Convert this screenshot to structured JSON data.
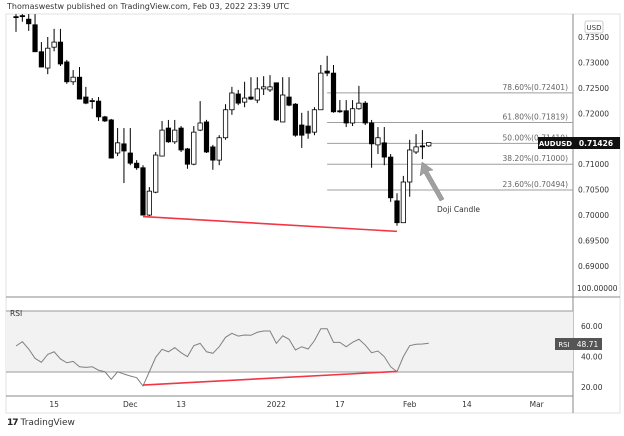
{
  "header": {
    "text": "Thomaswestw published on TradingView.com, Feb 03, 2022 23:39 UTC"
  },
  "footer": {
    "brand": "TradingView",
    "logo_icon": "tradingview-logo-icon"
  },
  "colors": {
    "bull": "#ffffff",
    "bear": "#000000",
    "trendline": "#f23645",
    "fib_line": "#9e9e9e",
    "rsi_line": "#808080",
    "rsi_band_fill": "#f2f2f2",
    "arrow": "#a0a0a0"
  },
  "chart_data": [
    {
      "type": "candlestick",
      "symbol": "AUDUSD",
      "currency": "USD",
      "last_price": "0.71426",
      "ylim": [
        0.688,
        0.7395
      ],
      "price_ticks": [
        "0.73500",
        "0.73000",
        "0.72500",
        "0.72000",
        "0.71000",
        "0.70500",
        "0.70000",
        "0.69500",
        "0.69000"
      ],
      "candles": [
        {
          "d": "2021-11-05",
          "o": 0.739,
          "h": 0.7395,
          "l": 0.736,
          "c": 0.7389
        },
        {
          "d": "2021-11-08",
          "o": 0.7392,
          "h": 0.7395,
          "l": 0.738,
          "c": 0.739
        },
        {
          "d": "2021-11-09",
          "o": 0.7385,
          "h": 0.7395,
          "l": 0.7362,
          "c": 0.7376
        },
        {
          "d": "2021-11-10",
          "o": 0.7374,
          "h": 0.7395,
          "l": 0.7321,
          "c": 0.7321
        },
        {
          "d": "2021-11-11",
          "o": 0.7321,
          "h": 0.734,
          "l": 0.7291,
          "c": 0.7291
        },
        {
          "d": "2021-11-12",
          "o": 0.7289,
          "h": 0.735,
          "l": 0.7277,
          "c": 0.7328
        },
        {
          "d": "2021-11-15",
          "o": 0.733,
          "h": 0.7366,
          "l": 0.7322,
          "c": 0.734
        },
        {
          "d": "2021-11-16",
          "o": 0.734,
          "h": 0.7366,
          "l": 0.7293,
          "c": 0.7297
        },
        {
          "d": "2021-11-17",
          "o": 0.7301,
          "h": 0.7305,
          "l": 0.7258,
          "c": 0.7262
        },
        {
          "d": "2021-11-18",
          "o": 0.7262,
          "h": 0.7285,
          "l": 0.7256,
          "c": 0.7271
        },
        {
          "d": "2021-11-19",
          "o": 0.7271,
          "h": 0.7291,
          "l": 0.7228,
          "c": 0.7228
        },
        {
          "d": "2021-11-22",
          "o": 0.7232,
          "h": 0.7252,
          "l": 0.7218,
          "c": 0.722
        },
        {
          "d": "2021-11-23",
          "o": 0.7225,
          "h": 0.723,
          "l": 0.7209,
          "c": 0.7224
        },
        {
          "d": "2021-11-24",
          "o": 0.7224,
          "h": 0.7232,
          "l": 0.7185,
          "c": 0.7193
        },
        {
          "d": "2021-11-25",
          "o": 0.7193,
          "h": 0.7195,
          "l": 0.7183,
          "c": 0.7185
        },
        {
          "d": "2021-11-26",
          "o": 0.7187,
          "h": 0.7189,
          "l": 0.7112,
          "c": 0.7112
        },
        {
          "d": "2021-11-29",
          "o": 0.7122,
          "h": 0.7171,
          "l": 0.7116,
          "c": 0.7142
        },
        {
          "d": "2021-11-30",
          "o": 0.714,
          "h": 0.7171,
          "l": 0.7063,
          "c": 0.7126
        },
        {
          "d": "2021-12-01",
          "o": 0.7122,
          "h": 0.7171,
          "l": 0.7098,
          "c": 0.7102
        },
        {
          "d": "2021-12-02",
          "o": 0.7102,
          "h": 0.7108,
          "l": 0.7089,
          "c": 0.7093
        },
        {
          "d": "2021-12-03",
          "o": 0.7093,
          "h": 0.7098,
          "l": 0.7,
          "c": 0.7
        },
        {
          "d": "2021-12-06",
          "o": 0.7,
          "h": 0.7055,
          "l": 0.6998,
          "c": 0.7047
        },
        {
          "d": "2021-12-07",
          "o": 0.7045,
          "h": 0.7124,
          "l": 0.7043,
          "c": 0.7118
        },
        {
          "d": "2021-12-08",
          "o": 0.7116,
          "h": 0.7185,
          "l": 0.7116,
          "c": 0.7167
        },
        {
          "d": "2021-12-09",
          "o": 0.7171,
          "h": 0.7187,
          "l": 0.7142,
          "c": 0.7144
        },
        {
          "d": "2021-12-10",
          "o": 0.7144,
          "h": 0.7187,
          "l": 0.714,
          "c": 0.7167
        },
        {
          "d": "2021-12-13",
          "o": 0.7171,
          "h": 0.7175,
          "l": 0.7124,
          "c": 0.7128
        },
        {
          "d": "2021-12-14",
          "o": 0.713,
          "h": 0.7132,
          "l": 0.7091,
          "c": 0.71
        },
        {
          "d": "2021-12-15",
          "o": 0.71,
          "h": 0.7175,
          "l": 0.7098,
          "c": 0.7163
        },
        {
          "d": "2021-12-16",
          "o": 0.7167,
          "h": 0.7224,
          "l": 0.7165,
          "c": 0.7181
        },
        {
          "d": "2021-12-17",
          "o": 0.7183,
          "h": 0.7187,
          "l": 0.7122,
          "c": 0.7124
        },
        {
          "d": "2021-12-20",
          "o": 0.7134,
          "h": 0.7138,
          "l": 0.7089,
          "c": 0.7108
        },
        {
          "d": "2021-12-21",
          "o": 0.7108,
          "h": 0.7157,
          "l": 0.7098,
          "c": 0.7152
        },
        {
          "d": "2021-12-22",
          "o": 0.7152,
          "h": 0.7218,
          "l": 0.7148,
          "c": 0.7207
        },
        {
          "d": "2021-12-23",
          "o": 0.7207,
          "h": 0.7252,
          "l": 0.7197,
          "c": 0.724
        },
        {
          "d": "2021-12-24",
          "o": 0.7238,
          "h": 0.7246,
          "l": 0.7216,
          "c": 0.722
        },
        {
          "d": "2021-12-27",
          "o": 0.7222,
          "h": 0.7262,
          "l": 0.7212,
          "c": 0.723
        },
        {
          "d": "2021-12-28",
          "o": 0.7232,
          "h": 0.7271,
          "l": 0.7226,
          "c": 0.7228
        },
        {
          "d": "2021-12-29",
          "o": 0.7226,
          "h": 0.7271,
          "l": 0.722,
          "c": 0.7248
        },
        {
          "d": "2021-12-30",
          "o": 0.7248,
          "h": 0.7273,
          "l": 0.7236,
          "c": 0.7252
        },
        {
          "d": "2021-12-31",
          "o": 0.7246,
          "h": 0.7275,
          "l": 0.7242,
          "c": 0.7252
        },
        {
          "d": "2022-01-03",
          "o": 0.726,
          "h": 0.726,
          "l": 0.7185,
          "c": 0.7187
        },
        {
          "d": "2022-01-04",
          "o": 0.7183,
          "h": 0.7271,
          "l": 0.7183,
          "c": 0.7236
        },
        {
          "d": "2022-01-05",
          "o": 0.7232,
          "h": 0.7271,
          "l": 0.7214,
          "c": 0.7216
        },
        {
          "d": "2022-01-06",
          "o": 0.7218,
          "h": 0.722,
          "l": 0.7154,
          "c": 0.7157
        },
        {
          "d": "2022-01-07",
          "o": 0.7177,
          "h": 0.7201,
          "l": 0.7132,
          "c": 0.7157
        },
        {
          "d": "2022-01-10",
          "o": 0.7175,
          "h": 0.7205,
          "l": 0.715,
          "c": 0.7161
        },
        {
          "d": "2022-01-11",
          "o": 0.7163,
          "h": 0.7212,
          "l": 0.7157,
          "c": 0.7207
        },
        {
          "d": "2022-01-12",
          "o": 0.7207,
          "h": 0.7295,
          "l": 0.7207,
          "c": 0.7279
        },
        {
          "d": "2022-01-13",
          "o": 0.7283,
          "h": 0.7313,
          "l": 0.7273,
          "c": 0.7279
        },
        {
          "d": "2022-01-14",
          "o": 0.7279,
          "h": 0.7295,
          "l": 0.7201,
          "c": 0.7203
        },
        {
          "d": "2022-01-17",
          "o": 0.7205,
          "h": 0.7226,
          "l": 0.7201,
          "c": 0.7203
        },
        {
          "d": "2022-01-18",
          "o": 0.7205,
          "h": 0.7226,
          "l": 0.7173,
          "c": 0.7181
        },
        {
          "d": "2022-01-19",
          "o": 0.7181,
          "h": 0.7226,
          "l": 0.7175,
          "c": 0.7209
        },
        {
          "d": "2022-01-20",
          "o": 0.7209,
          "h": 0.7254,
          "l": 0.7207,
          "c": 0.722
        },
        {
          "d": "2022-01-21",
          "o": 0.722,
          "h": 0.7224,
          "l": 0.7177,
          "c": 0.7181
        },
        {
          "d": "2022-01-24",
          "o": 0.7181,
          "h": 0.7187,
          "l": 0.7093,
          "c": 0.714
        },
        {
          "d": "2022-01-25",
          "o": 0.7138,
          "h": 0.7173,
          "l": 0.712,
          "c": 0.7152
        },
        {
          "d": "2022-01-26",
          "o": 0.7142,
          "h": 0.7173,
          "l": 0.7098,
          "c": 0.7114
        },
        {
          "d": "2022-01-27",
          "o": 0.7114,
          "h": 0.712,
          "l": 0.7026,
          "c": 0.7034
        },
        {
          "d": "2022-01-28",
          "o": 0.7028,
          "h": 0.7043,
          "l": 0.6979,
          "c": 0.6985
        },
        {
          "d": "2022-01-31",
          "o": 0.6985,
          "h": 0.7077,
          "l": 0.6985,
          "c": 0.7065
        },
        {
          "d": "2022-02-01",
          "o": 0.7065,
          "h": 0.7148,
          "l": 0.7036,
          "c": 0.7128
        },
        {
          "d": "2022-02-02",
          "o": 0.7124,
          "h": 0.7159,
          "l": 0.712,
          "c": 0.7134
        },
        {
          "d": "2022-02-03",
          "o": 0.7136,
          "h": 0.7167,
          "l": 0.711,
          "c": 0.7135
        },
        {
          "d": "2022-02-04",
          "o": 0.7136,
          "h": 0.7143,
          "l": 0.7134,
          "c": 0.71426
        }
      ],
      "fib_levels": [
        {
          "label": "78.60%(0.72401)",
          "price": 0.72401
        },
        {
          "label": "61.80%(0.71819)",
          "price": 0.71819
        },
        {
          "label": "50.00%(0.71410)",
          "price": 0.7141
        },
        {
          "label": "38.20%(0.71000)",
          "price": 0.71
        },
        {
          "label": "23.60%(0.70494)",
          "price": 0.70494
        }
      ],
      "fib_start_date": "2022-01-13",
      "trendline": {
        "from": {
          "d": "2021-12-03",
          "price": 0.6997
        },
        "to": {
          "d": "2022-01-28",
          "price": 0.6968
        }
      },
      "annotation": {
        "text": "Doji Candle",
        "target_date": "2022-02-03"
      }
    },
    {
      "type": "line",
      "title": "RSI",
      "last_value": "48.71",
      "ylim": [
        15,
        78
      ],
      "bands": [
        30,
        70
      ],
      "axis_ticks": [
        "60.00",
        "40.00",
        "20.00"
      ],
      "top_label": "100.00000",
      "values": [
        46.9,
        49.7,
        44.9,
        38.8,
        36.2,
        41.4,
        43.1,
        38.4,
        35.9,
        36.8,
        33.3,
        32.9,
        33.3,
        31.0,
        30.0,
        25.0,
        30.0,
        28.5,
        27.2,
        26.1,
        20.7,
        30.0,
        39.5,
        44.7,
        43.1,
        45.8,
        42.5,
        39.9,
        47.1,
        48.6,
        43.1,
        42.1,
        46.4,
        52.6,
        55.2,
        53.4,
        54.1,
        53.9,
        55.9,
        56.7,
        56.7,
        48.6,
        53.6,
        51.3,
        44.3,
        46.4,
        44.9,
        50.4,
        58.2,
        58.2,
        49.3,
        49.3,
        46.4,
        49.3,
        51.3,
        47.5,
        42.5,
        43.6,
        39.9,
        33.3,
        30.0,
        39.9,
        47.1,
        48.0,
        48.2,
        48.71
      ],
      "trendline": {
        "from": {
          "d": "2021-12-03",
          "value": 21.3
        },
        "to": {
          "d": "2022-01-28",
          "value": 30.2
        }
      }
    }
  ],
  "time_axis": [
    {
      "label": "15",
      "d": "2021-11-15"
    },
    {
      "label": "Dec",
      "d": "2021-12-01"
    },
    {
      "label": "13",
      "d": "2021-12-13"
    },
    {
      "label": "2022",
      "d": "2022-01-03"
    },
    {
      "label": "17",
      "d": "2022-01-17"
    },
    {
      "label": "Feb",
      "d": "2022-02-01"
    },
    {
      "label": "14",
      "d": "2022-02-14"
    },
    {
      "label": "Mar",
      "d": "2022-03-01"
    }
  ]
}
